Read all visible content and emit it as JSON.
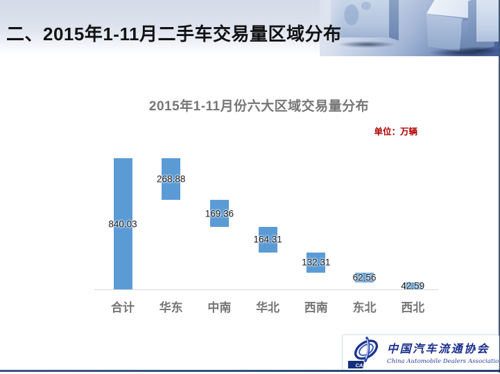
{
  "header": {
    "title": "二、2015年1-11月二手车交易量区域分布"
  },
  "chart_data": {
    "type": "bar",
    "subtype": "waterfall",
    "title": "2015年1-11月份六大区域交易量分布",
    "unit_label": "单位：万辆",
    "categories": [
      "合计",
      "华东",
      "中南",
      "华北",
      "西南",
      "东北",
      "西北"
    ],
    "values": [
      840.03,
      268.88,
      169.36,
      164.31,
      132.31,
      62.56,
      42.59
    ],
    "bar_color": "#5b9bd5",
    "ylim": [
      0,
      840.03
    ],
    "grid": false,
    "legend": false,
    "value_labels_decimals": 2
  },
  "footer": {
    "logo": {
      "acronym": "CADA",
      "name_cn": "中国汽车流通协会",
      "name_en": "China Automobile Dealers Association"
    }
  }
}
